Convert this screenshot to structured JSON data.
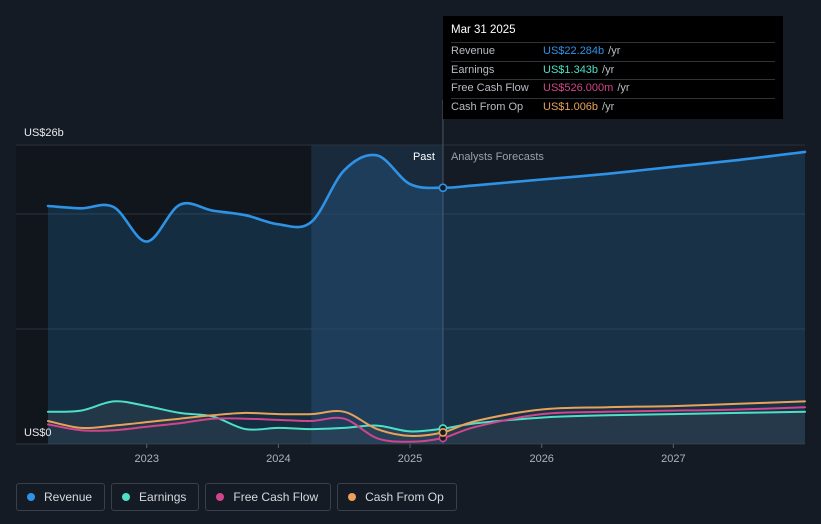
{
  "chart_data": {
    "type": "line",
    "ylabels": {
      "top": "US$26b",
      "bottom": "US$0"
    },
    "ylim": [
      0,
      26
    ],
    "xlim": [
      2022.25,
      2028.0
    ],
    "x_ticks": [
      {
        "label": "2023",
        "value": 2023.0
      },
      {
        "label": "2024",
        "value": 2024.0
      },
      {
        "label": "2025",
        "value": 2025.0
      },
      {
        "label": "2026",
        "value": 2026.0
      },
      {
        "label": "2027",
        "value": 2027.0
      }
    ],
    "divider": {
      "x": 2025.25,
      "past_label": "Past",
      "forecast_label": "Analysts Forecasts"
    },
    "past_shade_start": 2024.25,
    "series": [
      {
        "name": "Revenue",
        "color": "#2e93e6",
        "points": [
          [
            2022.25,
            20.7
          ],
          [
            2022.5,
            20.5
          ],
          [
            2022.75,
            20.6
          ],
          [
            2023.0,
            17.6
          ],
          [
            2023.25,
            20.8
          ],
          [
            2023.5,
            20.3
          ],
          [
            2023.75,
            19.9
          ],
          [
            2024.0,
            19.1
          ],
          [
            2024.25,
            19.3
          ],
          [
            2024.5,
            23.8
          ],
          [
            2024.75,
            25.1
          ],
          [
            2025.0,
            22.6
          ],
          [
            2025.25,
            22.284
          ],
          [
            2025.5,
            22.5
          ],
          [
            2026.0,
            23.0
          ],
          [
            2026.5,
            23.5
          ],
          [
            2027.0,
            24.1
          ],
          [
            2027.5,
            24.7
          ],
          [
            2028.0,
            25.4
          ]
        ]
      },
      {
        "name": "Earnings",
        "color": "#4ee0c6",
        "points": [
          [
            2022.25,
            2.8
          ],
          [
            2022.5,
            2.9
          ],
          [
            2022.75,
            3.7
          ],
          [
            2023.0,
            3.3
          ],
          [
            2023.25,
            2.7
          ],
          [
            2023.5,
            2.4
          ],
          [
            2023.75,
            1.3
          ],
          [
            2024.0,
            1.4
          ],
          [
            2024.25,
            1.3
          ],
          [
            2024.5,
            1.4
          ],
          [
            2024.75,
            1.6
          ],
          [
            2025.0,
            1.1
          ],
          [
            2025.25,
            1.343
          ],
          [
            2025.5,
            1.8
          ],
          [
            2026.0,
            2.3
          ],
          [
            2026.5,
            2.5
          ],
          [
            2027.0,
            2.6
          ],
          [
            2027.5,
            2.7
          ],
          [
            2028.0,
            2.8
          ]
        ]
      },
      {
        "name": "Free Cash Flow",
        "color": "#d0468c",
        "points": [
          [
            2022.25,
            1.7
          ],
          [
            2022.5,
            1.2
          ],
          [
            2022.75,
            1.2
          ],
          [
            2023.0,
            1.5
          ],
          [
            2023.25,
            1.8
          ],
          [
            2023.5,
            2.2
          ],
          [
            2023.75,
            2.2
          ],
          [
            2024.0,
            2.1
          ],
          [
            2024.25,
            2.0
          ],
          [
            2024.5,
            2.2
          ],
          [
            2024.75,
            0.5
          ],
          [
            2025.0,
            0.2
          ],
          [
            2025.25,
            0.526
          ],
          [
            2025.5,
            1.5
          ],
          [
            2026.0,
            2.6
          ],
          [
            2026.5,
            2.8
          ],
          [
            2027.0,
            2.9
          ],
          [
            2027.5,
            3.0
          ],
          [
            2028.0,
            3.2
          ]
        ]
      },
      {
        "name": "Cash From Op",
        "color": "#e8a25a",
        "points": [
          [
            2022.25,
            2.0
          ],
          [
            2022.5,
            1.4
          ],
          [
            2022.75,
            1.6
          ],
          [
            2023.0,
            1.9
          ],
          [
            2023.25,
            2.2
          ],
          [
            2023.5,
            2.5
          ],
          [
            2023.75,
            2.7
          ],
          [
            2024.0,
            2.6
          ],
          [
            2024.25,
            2.6
          ],
          [
            2024.5,
            2.8
          ],
          [
            2024.75,
            1.3
          ],
          [
            2025.0,
            0.7
          ],
          [
            2025.25,
            1.006
          ],
          [
            2025.5,
            2.0
          ],
          [
            2026.0,
            3.0
          ],
          [
            2026.5,
            3.2
          ],
          [
            2027.0,
            3.3
          ],
          [
            2027.5,
            3.5
          ],
          [
            2028.0,
            3.7
          ]
        ]
      }
    ]
  },
  "tooltip": {
    "date": "Mar 31 2025",
    "rows": [
      {
        "label": "Revenue",
        "value": "US$22.284b",
        "unit": "/yr",
        "color": "#2e93e6"
      },
      {
        "label": "Earnings",
        "value": "US$1.343b",
        "unit": "/yr",
        "color": "#4ee0c6"
      },
      {
        "label": "Free Cash Flow",
        "value": "US$526.000m",
        "unit": "/yr",
        "color": "#d0468c"
      },
      {
        "label": "Cash From Op",
        "value": "US$1.006b",
        "unit": "/yr",
        "color": "#e8a25a"
      }
    ]
  },
  "legend": [
    {
      "label": "Revenue",
      "color": "#2e93e6"
    },
    {
      "label": "Earnings",
      "color": "#4ee0c6"
    },
    {
      "label": "Free Cash Flow",
      "color": "#d0468c"
    },
    {
      "label": "Cash From Op",
      "color": "#e8a25a"
    }
  ]
}
